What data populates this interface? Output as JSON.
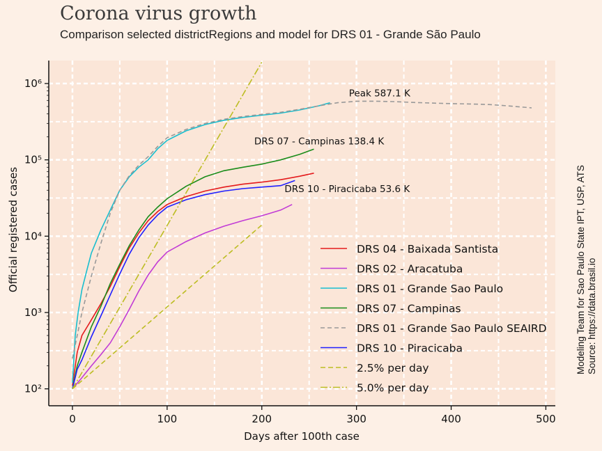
{
  "title": "Corona virus growth",
  "subtitle": "Comparison selected districtRegions and model for DRS 01 - Grande São Paulo",
  "side_note": {
    "line1": "Modeling Team for Sao Paulo State IPT, USP, ATS",
    "line2": "Source: https://data.brasil.io"
  },
  "chart_data": {
    "type": "line",
    "xlabel": "Days after 100th case",
    "ylabel": "Official registered cases",
    "xlim": [
      -25,
      510
    ],
    "ylim": [
      60,
      2000000
    ],
    "yscale": "log",
    "grid": true,
    "x_ticks": [
      0,
      100,
      200,
      300,
      400,
      500
    ],
    "x_tick_labels": [
      "0",
      "100",
      "200",
      "300",
      "400",
      "500"
    ],
    "y_ticks": [
      100,
      1000,
      10000,
      100000,
      1000000
    ],
    "y_tick_labels": [
      "10²",
      "10³",
      "10⁴",
      "10⁵",
      "10⁶"
    ],
    "legend_position": "lower right",
    "annotations": [
      {
        "text": "Peak 587.1 K",
        "x": 292,
        "y": 680000
      },
      {
        "text": "DRS 07 - Campinas 138.4 K",
        "x": 192,
        "y": 160000
      },
      {
        "text": "DRS 10 - Piracicaba 53.6 K",
        "x": 224,
        "y": 38000
      }
    ],
    "series": [
      {
        "name": "DRS 04 - Baixada Santista",
        "color": "#e41a1c",
        "dash": "",
        "x": [
          0,
          5,
          10,
          20,
          30,
          40,
          50,
          60,
          70,
          80,
          90,
          100,
          120,
          140,
          160,
          180,
          200,
          220,
          240,
          255
        ],
        "y": [
          110,
          300,
          500,
          800,
          1300,
          2200,
          4000,
          7000,
          11000,
          16000,
          21000,
          26000,
          33000,
          39000,
          44000,
          48000,
          51000,
          55000,
          61000,
          67000
        ]
      },
      {
        "name": "DRS 02 - Aracatuba",
        "color": "#c13bd6",
        "dash": "",
        "x": [
          0,
          10,
          20,
          30,
          40,
          50,
          60,
          70,
          80,
          90,
          100,
          120,
          140,
          160,
          180,
          200,
          220,
          232
        ],
        "y": [
          100,
          140,
          200,
          280,
          400,
          650,
          1100,
          1900,
          3100,
          4600,
          6200,
          8500,
          11000,
          13500,
          16000,
          18500,
          22000,
          26000
        ]
      },
      {
        "name": "DRS 01 - Grande Sao Paulo",
        "color": "#17becf",
        "dash": "",
        "x": [
          0,
          3,
          6,
          10,
          15,
          20,
          30,
          40,
          50,
          60,
          70,
          80,
          90,
          100,
          120,
          140,
          160,
          180,
          200,
          220,
          240,
          260,
          272
        ],
        "y": [
          120,
          500,
          1000,
          2000,
          3500,
          6000,
          12000,
          22000,
          40000,
          60000,
          80000,
          100000,
          140000,
          180000,
          240000,
          290000,
          330000,
          360000,
          385000,
          410000,
          450000,
          510000,
          560000
        ]
      },
      {
        "name": "DRS 07 - Campinas",
        "color": "#1a8c1a",
        "dash": "",
        "x": [
          0,
          5,
          10,
          20,
          30,
          40,
          50,
          60,
          70,
          80,
          90,
          100,
          120,
          140,
          160,
          180,
          200,
          220,
          240,
          255
        ],
        "y": [
          100,
          200,
          300,
          650,
          1200,
          2400,
          4300,
          7500,
          12000,
          18000,
          24000,
          31000,
          45000,
          60000,
          72000,
          80000,
          88000,
          100000,
          118000,
          138400
        ]
      },
      {
        "name": "DRS 01 - Grande Sao Paulo SEAIRD",
        "color": "#999999",
        "dash": "6,4",
        "x": [
          0,
          10,
          20,
          30,
          40,
          50,
          60,
          70,
          80,
          90,
          100,
          120,
          140,
          160,
          180,
          200,
          220,
          240,
          260,
          280,
          300,
          320,
          340,
          360,
          380,
          400,
          420,
          440,
          460,
          485
        ],
        "y": [
          250,
          1000,
          3000,
          8000,
          20000,
          40000,
          62000,
          85000,
          110000,
          150000,
          195000,
          250000,
          300000,
          340000,
          370000,
          395000,
          420000,
          460000,
          510000,
          560000,
          585000,
          587100,
          580000,
          565000,
          555000,
          545000,
          540000,
          530000,
          510000,
          480000
        ]
      },
      {
        "name": "DRS 10 - Piracicaba",
        "color": "#1f1fff",
        "dash": "",
        "x": [
          0,
          5,
          10,
          20,
          30,
          40,
          50,
          60,
          70,
          80,
          90,
          100,
          120,
          140,
          160,
          180,
          200,
          220,
          235
        ],
        "y": [
          100,
          180,
          240,
          480,
          900,
          1700,
          3200,
          5800,
          9500,
          14000,
          19000,
          24000,
          30000,
          35000,
          39000,
          42000,
          44000,
          46000,
          53600
        ]
      },
      {
        "name": "2.5% per day",
        "color": "#bcbd22",
        "dash": "7,4",
        "x": [
          0,
          200
        ],
        "y": [
          100,
          14000
        ]
      },
      {
        "name": "5.0% per day",
        "color": "#bcbd22",
        "dash": "10,3,2,3",
        "x": [
          0,
          200
        ],
        "y": [
          100,
          1900000
        ]
      }
    ]
  }
}
